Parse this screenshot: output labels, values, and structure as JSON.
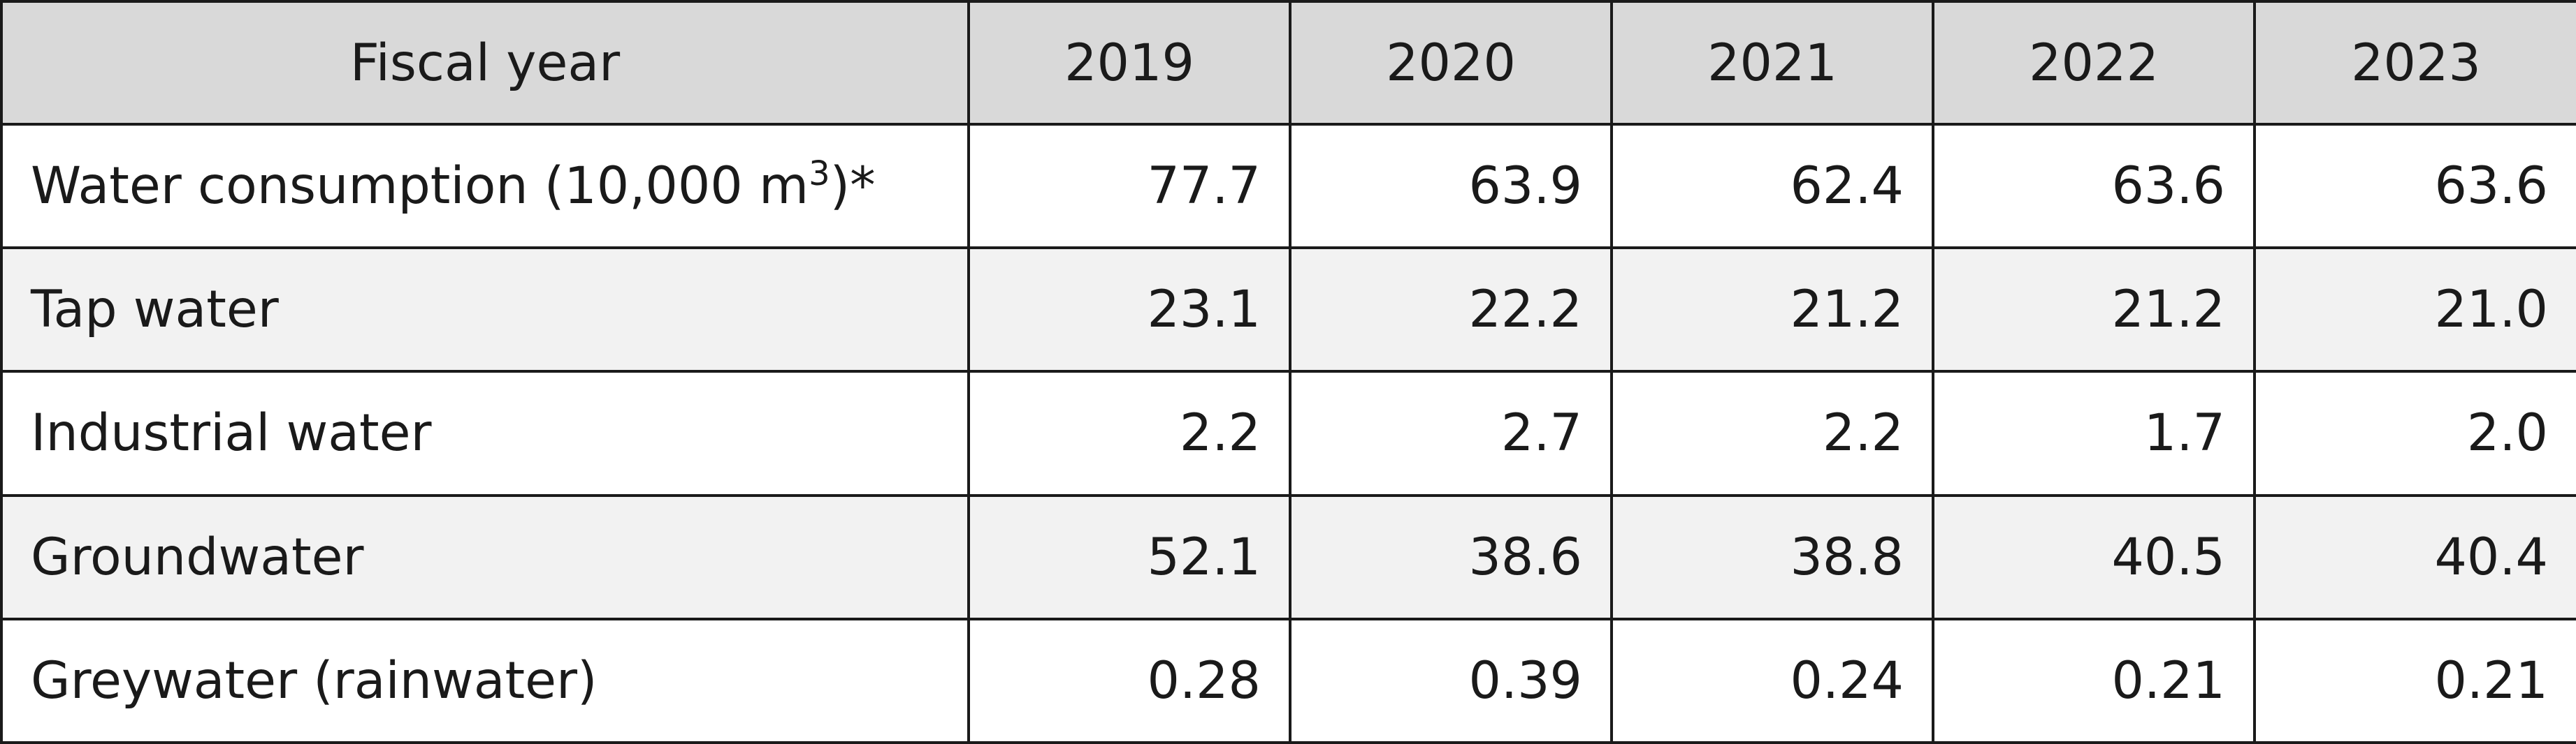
{
  "table": {
    "header": {
      "label": "Fiscal year",
      "years": [
        "2019",
        "2020",
        "2021",
        "2022",
        "2023"
      ]
    },
    "rows": [
      {
        "label": "Water consumption (10,000 m",
        "label_superscript": "3",
        "label_suffix": ")*",
        "values": [
          "77.7",
          "63.9",
          "62.4",
          "63.6",
          "63.6"
        ]
      },
      {
        "label": "Tap water",
        "values": [
          "23.1",
          "22.2",
          "21.2",
          "21.2",
          "21.0"
        ]
      },
      {
        "label": "Industrial water",
        "values": [
          "2.2",
          "2.7",
          "2.2",
          "1.7",
          "2.0"
        ]
      },
      {
        "label": "Groundwater",
        "values": [
          "52.1",
          "38.6",
          "38.8",
          "40.5",
          "40.4"
        ]
      },
      {
        "label": "Greywater (rainwater)",
        "values": [
          "0.28",
          "0.39",
          "0.24",
          "0.21",
          "0.21"
        ]
      }
    ],
    "colors": {
      "header_background": "#d9d9d9",
      "shaded_row_background": "#f2f2f2",
      "plain_row_background": "#ffffff",
      "border": "#1a1a1a"
    }
  }
}
